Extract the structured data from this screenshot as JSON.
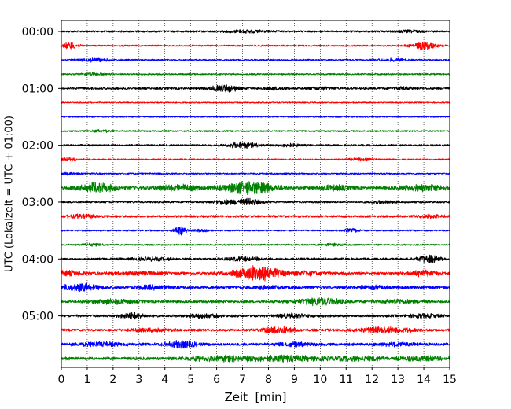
{
  "chart_data": {
    "type": "line",
    "title": "",
    "xlabel": "Zeit  [min]",
    "ylabel": "UTC (Lokalzeit = UTC + 01:00)",
    "xlim": [
      0,
      15
    ],
    "x_ticks": [
      0,
      1,
      2,
      3,
      4,
      5,
      6,
      7,
      8,
      9,
      10,
      11,
      12,
      13,
      14,
      15
    ],
    "y_tick_labels": [
      "00:00",
      "01:00",
      "02:00",
      "03:00",
      "04:00",
      "05:00"
    ],
    "y_tick_trace_index": [
      0,
      4,
      8,
      12,
      16,
      20
    ],
    "minutes_per_trace": 15,
    "grid": "vertical dotted at each minute",
    "legend": "none",
    "color_cycle": [
      "#000000",
      "#ff0000",
      "#0000ff",
      "#008000"
    ],
    "traces": [
      {
        "start": "00:00",
        "color": "#000000",
        "base": 0.3,
        "bursts": [
          [
            7.2,
            0.5,
            0.4
          ],
          [
            13.5,
            0.4,
            0.3
          ]
        ]
      },
      {
        "start": "00:15",
        "color": "#ff0000",
        "base": 0.25,
        "bursts": [
          [
            0.35,
            0.2,
            1.0
          ],
          [
            14.0,
            0.35,
            1.0
          ]
        ]
      },
      {
        "start": "00:30",
        "color": "#0000ff",
        "base": 0.25,
        "bursts": [
          [
            1.3,
            0.4,
            0.5
          ],
          [
            12.8,
            0.4,
            0.3
          ]
        ]
      },
      {
        "start": "00:45",
        "color": "#008000",
        "base": 0.25,
        "bursts": [
          [
            1.2,
            0.3,
            0.3
          ]
        ]
      },
      {
        "start": "01:00",
        "color": "#000000",
        "base": 0.35,
        "bursts": [
          [
            6.3,
            0.4,
            1.0
          ],
          [
            8.3,
            0.3,
            0.4
          ],
          [
            10.0,
            0.3,
            0.4
          ],
          [
            13.3,
            0.3,
            0.4
          ]
        ]
      },
      {
        "start": "01:15",
        "color": "#ff0000",
        "base": 0.2,
        "bursts": []
      },
      {
        "start": "01:30",
        "color": "#0000ff",
        "base": 0.2,
        "bursts": []
      },
      {
        "start": "01:45",
        "color": "#008000",
        "base": 0.25,
        "bursts": [
          [
            1.5,
            0.3,
            0.3
          ]
        ]
      },
      {
        "start": "02:00",
        "color": "#000000",
        "base": 0.3,
        "bursts": [
          [
            7.0,
            0.4,
            0.9
          ],
          [
            8.8,
            0.3,
            0.4
          ]
        ]
      },
      {
        "start": "02:15",
        "color": "#ff0000",
        "base": 0.25,
        "bursts": [
          [
            0.3,
            0.3,
            0.4
          ],
          [
            11.5,
            0.4,
            0.3
          ]
        ]
      },
      {
        "start": "02:30",
        "color": "#0000ff",
        "base": 0.25,
        "bursts": [
          [
            0.3,
            0.3,
            0.3
          ]
        ]
      },
      {
        "start": "02:45",
        "color": "#008000",
        "base": 0.45,
        "bursts": [
          [
            1.4,
            0.5,
            1.4
          ],
          [
            4.5,
            0.6,
            0.8
          ],
          [
            7.3,
            0.7,
            1.8
          ],
          [
            10.5,
            0.5,
            0.7
          ],
          [
            14.0,
            0.6,
            0.8
          ]
        ]
      },
      {
        "start": "03:00",
        "color": "#000000",
        "base": 0.3,
        "bursts": [
          [
            6.3,
            0.3,
            0.7
          ],
          [
            7.2,
            0.3,
            1.0
          ],
          [
            12.5,
            0.3,
            0.4
          ]
        ]
      },
      {
        "start": "03:15",
        "color": "#ff0000",
        "base": 0.35,
        "bursts": [
          [
            0.8,
            0.4,
            0.5
          ],
          [
            14.2,
            0.4,
            0.4
          ]
        ]
      },
      {
        "start": "03:30",
        "color": "#0000ff",
        "base": 0.25,
        "bursts": [
          [
            4.6,
            0.15,
            1.3
          ],
          [
            5.4,
            0.2,
            0.4
          ],
          [
            11.2,
            0.2,
            0.5
          ]
        ]
      },
      {
        "start": "03:45",
        "color": "#008000",
        "base": 0.25,
        "bursts": [
          [
            1.2,
            0.3,
            0.3
          ],
          [
            10.5,
            0.3,
            0.3
          ]
        ]
      },
      {
        "start": "04:00",
        "color": "#000000",
        "base": 0.35,
        "bursts": [
          [
            3.5,
            0.5,
            0.4
          ],
          [
            7.0,
            0.5,
            0.5
          ],
          [
            14.2,
            0.3,
            1.0
          ]
        ]
      },
      {
        "start": "04:15",
        "color": "#ff0000",
        "base": 0.4,
        "bursts": [
          [
            0.2,
            0.4,
            0.6
          ],
          [
            3.0,
            0.6,
            0.4
          ],
          [
            7.6,
            0.6,
            2.2
          ],
          [
            9.5,
            0.4,
            0.6
          ],
          [
            14.0,
            0.4,
            0.9
          ]
        ]
      },
      {
        "start": "04:30",
        "color": "#0000ff",
        "base": 0.45,
        "bursts": [
          [
            0.7,
            0.5,
            1.1
          ],
          [
            3.5,
            0.5,
            0.5
          ],
          [
            8.0,
            0.5,
            0.4
          ],
          [
            12.0,
            0.4,
            0.5
          ]
        ]
      },
      {
        "start": "04:45",
        "color": "#008000",
        "base": 0.4,
        "bursts": [
          [
            2.0,
            0.5,
            0.7
          ],
          [
            10.0,
            0.6,
            1.0
          ],
          [
            13.0,
            0.5,
            0.5
          ]
        ]
      },
      {
        "start": "05:00",
        "color": "#000000",
        "base": 0.4,
        "bursts": [
          [
            2.7,
            0.3,
            0.8
          ],
          [
            5.5,
            0.4,
            0.5
          ],
          [
            9.0,
            0.4,
            0.5
          ],
          [
            14.0,
            0.4,
            0.5
          ]
        ]
      },
      {
        "start": "05:15",
        "color": "#ff0000",
        "base": 0.4,
        "bursts": [
          [
            8.4,
            0.4,
            1.0
          ],
          [
            12.5,
            0.7,
            0.8
          ],
          [
            3.5,
            0.5,
            0.4
          ]
        ]
      },
      {
        "start": "05:30",
        "color": "#0000ff",
        "base": 0.45,
        "bursts": [
          [
            4.6,
            0.4,
            1.0
          ],
          [
            1.5,
            0.6,
            0.5
          ],
          [
            9.0,
            0.5,
            0.4
          ],
          [
            13.0,
            0.5,
            0.4
          ]
        ]
      },
      {
        "start": "05:45",
        "color": "#008000",
        "base": 0.5,
        "bursts": [
          [
            6.0,
            0.8,
            0.6
          ],
          [
            8.5,
            1.0,
            0.7
          ],
          [
            11.5,
            0.8,
            0.5
          ],
          [
            14.0,
            0.6,
            0.5
          ]
        ]
      }
    ]
  }
}
